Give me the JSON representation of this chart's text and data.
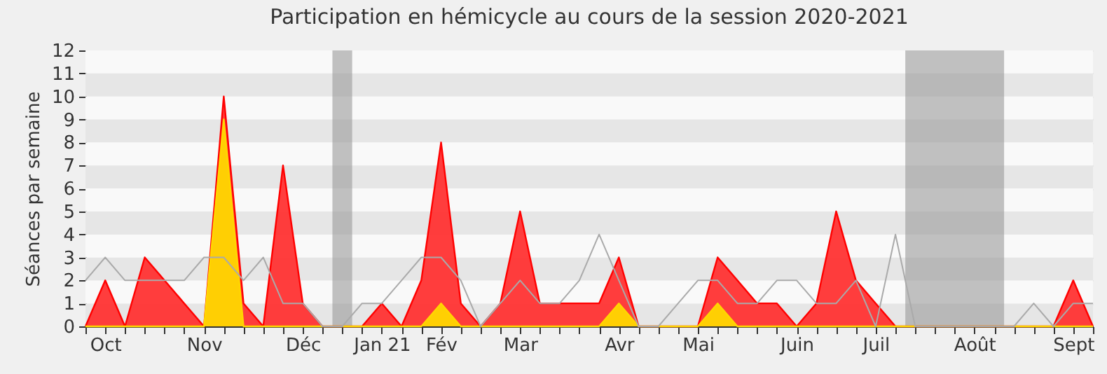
{
  "chart_data": {
    "type": "area",
    "title": "Participation en hémicycle au cours de la session 2020-2021",
    "ylabel": "Séances par semaine",
    "categories": [
      null,
      "Oct",
      null,
      null,
      null,
      null,
      "Nov",
      null,
      null,
      null,
      null,
      "Déc",
      null,
      null,
      null,
      "Jan 21",
      null,
      null,
      "Fév",
      null,
      null,
      null,
      "Mar",
      null,
      null,
      null,
      null,
      "Avr",
      null,
      null,
      null,
      "Mai",
      null,
      null,
      null,
      null,
      "Juin",
      null,
      null,
      null,
      "Juil",
      null,
      null,
      null,
      null,
      "Août",
      null,
      null,
      null,
      null,
      "Sept",
      null
    ],
    "series": [
      {
        "color": "#ff3333",
        "values": [
          0,
          2,
          0,
          3,
          2,
          1,
          0,
          10,
          1,
          0,
          7,
          1,
          0,
          0,
          0,
          1,
          0,
          2,
          8,
          1,
          0,
          1,
          5,
          1,
          1,
          1,
          1,
          3,
          0,
          0,
          0,
          0,
          3,
          2,
          1,
          1,
          0,
          1,
          5,
          2,
          1,
          0,
          0,
          0,
          0,
          0,
          0,
          0,
          0,
          0,
          2,
          0
        ]
      },
      {
        "color": "#ffd700",
        "values": [
          0,
          0,
          0,
          0,
          0,
          0,
          0,
          9,
          0,
          0,
          0,
          0,
          0,
          0,
          0,
          0,
          0,
          0,
          1,
          0,
          0,
          0,
          0,
          0,
          0,
          0,
          0,
          1,
          0,
          0,
          0,
          0,
          1,
          0,
          0,
          0,
          0,
          0,
          0,
          0,
          0,
          0,
          0,
          0,
          0,
          0,
          0,
          0,
          0,
          0,
          0,
          0
        ]
      },
      {
        "type": "line",
        "color": "#aaaaaa",
        "values": [
          2,
          3,
          2,
          2,
          2,
          2,
          3,
          3,
          2,
          3,
          1,
          1,
          0,
          0,
          1,
          1,
          2,
          3,
          3,
          2,
          0,
          1,
          2,
          1,
          1,
          2,
          4,
          2,
          0,
          0,
          1,
          2,
          2,
          1,
          1,
          2,
          2,
          1,
          1,
          2,
          0,
          4,
          0,
          0,
          0,
          0,
          0,
          0,
          1,
          0,
          1,
          1
        ]
      }
    ],
    "ylim": [
      0,
      12
    ],
    "yticks": [
      0,
      1,
      2,
      3,
      4,
      5,
      6,
      7,
      8,
      9,
      10,
      11,
      12
    ],
    "grid": true
  }
}
